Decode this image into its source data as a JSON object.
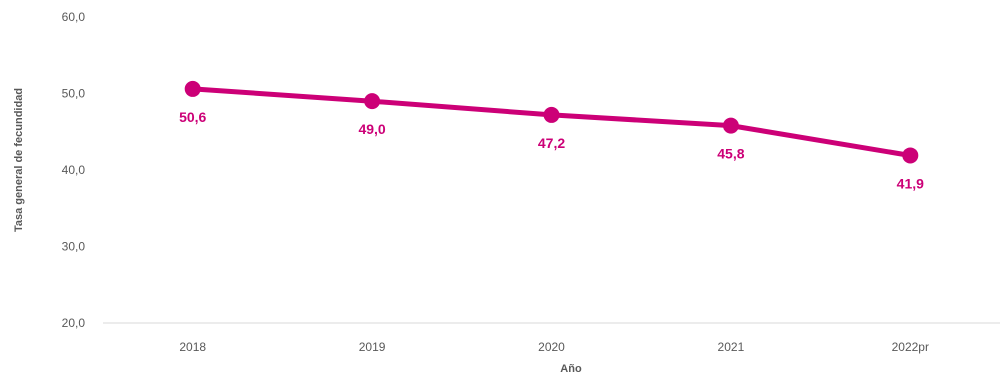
{
  "chart_data": {
    "type": "line",
    "title": "",
    "xlabel": "Año",
    "ylabel": "Tasa general de fecundidad",
    "categories": [
      "2018",
      "2019",
      "2020",
      "2021",
      "2022pr"
    ],
    "series": [
      {
        "values": [
          50.6,
          49.0,
          47.2,
          45.8,
          41.9
        ],
        "data_labels": [
          "50,6",
          "49,0",
          "47,2",
          "45,8",
          "41,9"
        ],
        "color": "#CC0077"
      }
    ],
    "ylim": [
      20,
      60
    ],
    "yticks": [
      20,
      30,
      40,
      50,
      60
    ],
    "ytick_labels": [
      "20,0",
      "30,0",
      "40,0",
      "50,0",
      "60,0"
    ],
    "grid": false,
    "legend": "none"
  }
}
